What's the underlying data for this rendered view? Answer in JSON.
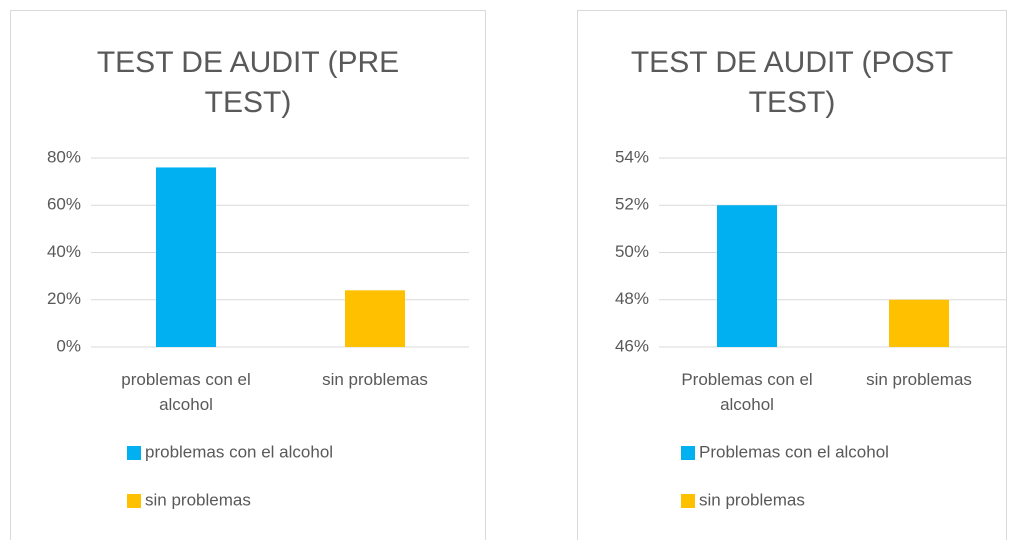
{
  "chart_data": [
    {
      "type": "bar",
      "title": "TEST DE AUDIT (PRE TEST)",
      "categories": [
        "problemas con el alcohol",
        "sin problemas"
      ],
      "values": [
        76,
        24
      ],
      "colors": [
        "#00b0f0",
        "#ffc000"
      ],
      "ylim": [
        0,
        80
      ],
      "yticks": [
        {
          "value": 0,
          "label": "0%"
        },
        {
          "value": 20,
          "label": "20%"
        },
        {
          "value": 40,
          "label": "40%"
        },
        {
          "value": 60,
          "label": "60%"
        },
        {
          "value": 80,
          "label": "80%"
        }
      ],
      "grid": true
    },
    {
      "type": "bar",
      "title": "TEST DE AUDIT (POST TEST)",
      "categories": [
        "Problemas con el alcohol",
        "sin problemas"
      ],
      "values": [
        52,
        48
      ],
      "colors": [
        "#00b0f0",
        "#ffc000"
      ],
      "ylim": [
        46,
        54
      ],
      "yticks": [
        {
          "value": 46,
          "label": "46%"
        },
        {
          "value": 48,
          "label": "48%"
        },
        {
          "value": 50,
          "label": "50%"
        },
        {
          "value": 52,
          "label": "52%"
        },
        {
          "value": 54,
          "label": "54%"
        }
      ],
      "grid": true
    }
  ]
}
